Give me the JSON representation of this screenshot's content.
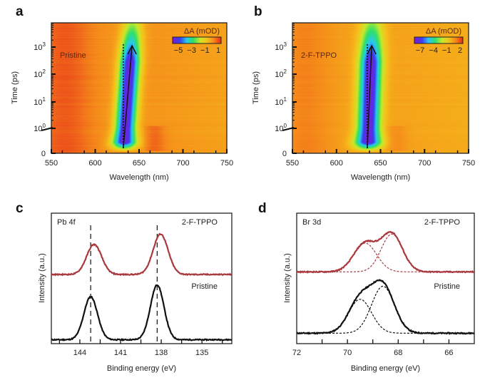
{
  "panels": {
    "a": {
      "letter": "a",
      "sample": "Pristine"
    },
    "b": {
      "letter": "b",
      "sample": "2-F-TPPO"
    },
    "c": {
      "letter": "c",
      "core_level": "Pb 4f",
      "top_label": "2-F-TPPO",
      "bottom_label": "Pristine"
    },
    "d": {
      "letter": "d",
      "core_level": "Br 3d",
      "top_label": "2-F-TPPO",
      "bottom_label": "Pristine"
    }
  },
  "chart_data": [
    {
      "type": "heatmap",
      "panel": "a",
      "title": "Pristine",
      "xlabel": "Wavelength (nm)",
      "ylabel": "Time (ps)",
      "xlim": [
        550,
        750
      ],
      "xticks": [
        "550",
        "600",
        "650",
        "700",
        "750"
      ],
      "yticks": [
        "0",
        "10^0",
        "10^1",
        "10^2",
        "10^3"
      ],
      "yscale": "linear below 1 ps, log above",
      "colorbar": {
        "label": "ΔA (mOD)",
        "ticks": [
          "−5",
          "−3",
          "−1",
          "1"
        ],
        "range": [
          -6,
          1.5
        ]
      },
      "bleach": {
        "center_start_nm": 632,
        "center_end_nm": 642,
        "min_mOD": -6,
        "width_nm": 11
      },
      "colors": [
        "#7a1fd6",
        "#3b3bf0",
        "#28c8f0",
        "#2ee06a",
        "#c8e82a",
        "#f5c21a",
        "#f58a1a",
        "#e8341a"
      ]
    },
    {
      "type": "heatmap",
      "panel": "b",
      "title": "2-F-TPPO",
      "xlabel": "Wavelength (nm)",
      "ylabel": "Time (ps)",
      "xlim": [
        550,
        750
      ],
      "xticks": [
        "550",
        "600",
        "650",
        "700",
        "750"
      ],
      "yticks": [
        "0",
        "10^0",
        "10^1",
        "10^2",
        "10^3"
      ],
      "yscale": "linear below 1 ps, log above",
      "colorbar": {
        "label": "ΔA (mOD)",
        "ticks": [
          "−7",
          "−4",
          "−1",
          "2"
        ],
        "range": [
          -8.5,
          2.5
        ]
      },
      "bleach": {
        "center_start_nm": 635,
        "center_end_nm": 640,
        "min_mOD": -8.5,
        "width_nm": 12
      },
      "colors": [
        "#7a1fd6",
        "#3b3bf0",
        "#28c8f0",
        "#2ee06a",
        "#c8e82a",
        "#f5c21a",
        "#f58a1a",
        "#e8341a"
      ]
    },
    {
      "type": "line",
      "panel": "c",
      "xlabel": "Binding energy (eV)",
      "ylabel": "Intensity (a.u.)",
      "xlim": [
        146.1,
        132.8
      ],
      "xticks": [
        144,
        141,
        138,
        135
      ],
      "ylim": [
        0,
        10
      ],
      "reference_lines_eV": [
        143.2,
        138.3
      ],
      "series": [
        {
          "name": "Pristine",
          "color": "#111111",
          "baseline": 0.3,
          "peaks": [
            {
              "center": 143.2,
              "amp": 3.3,
              "sigma": 0.5
            },
            {
              "center": 138.3,
              "amp": 4.2,
              "sigma": 0.5
            }
          ]
        },
        {
          "name": "2-F-TPPO",
          "color": "#a8393f",
          "baseline": 5.3,
          "peaks": [
            {
              "center": 142.95,
              "amp": 2.3,
              "sigma": 0.55
            },
            {
              "center": 138.05,
              "amp": 3.1,
              "sigma": 0.55
            }
          ]
        }
      ]
    },
    {
      "type": "line",
      "panel": "d",
      "xlabel": "Binding energy (eV)",
      "ylabel": "Intensity (a.u.)",
      "xlim": [
        72,
        65
      ],
      "xticks": [
        72,
        70,
        68,
        66
      ],
      "ylim": [
        0,
        10
      ],
      "series": [
        {
          "name": "Pristine",
          "color": "#111111",
          "baseline": 0.8,
          "peaks": [
            {
              "center": 69.5,
              "amp": 2.6,
              "sigma": 0.45
            },
            {
              "center": 68.6,
              "amp": 3.6,
              "sigma": 0.45
            }
          ]
        },
        {
          "name": "2-F-TPPO",
          "color": "#a8393f",
          "baseline": 5.5,
          "peaks": [
            {
              "center": 69.3,
              "amp": 2.2,
              "sigma": 0.45
            },
            {
              "center": 68.25,
              "amp": 2.9,
              "sigma": 0.42
            }
          ]
        }
      ]
    }
  ]
}
